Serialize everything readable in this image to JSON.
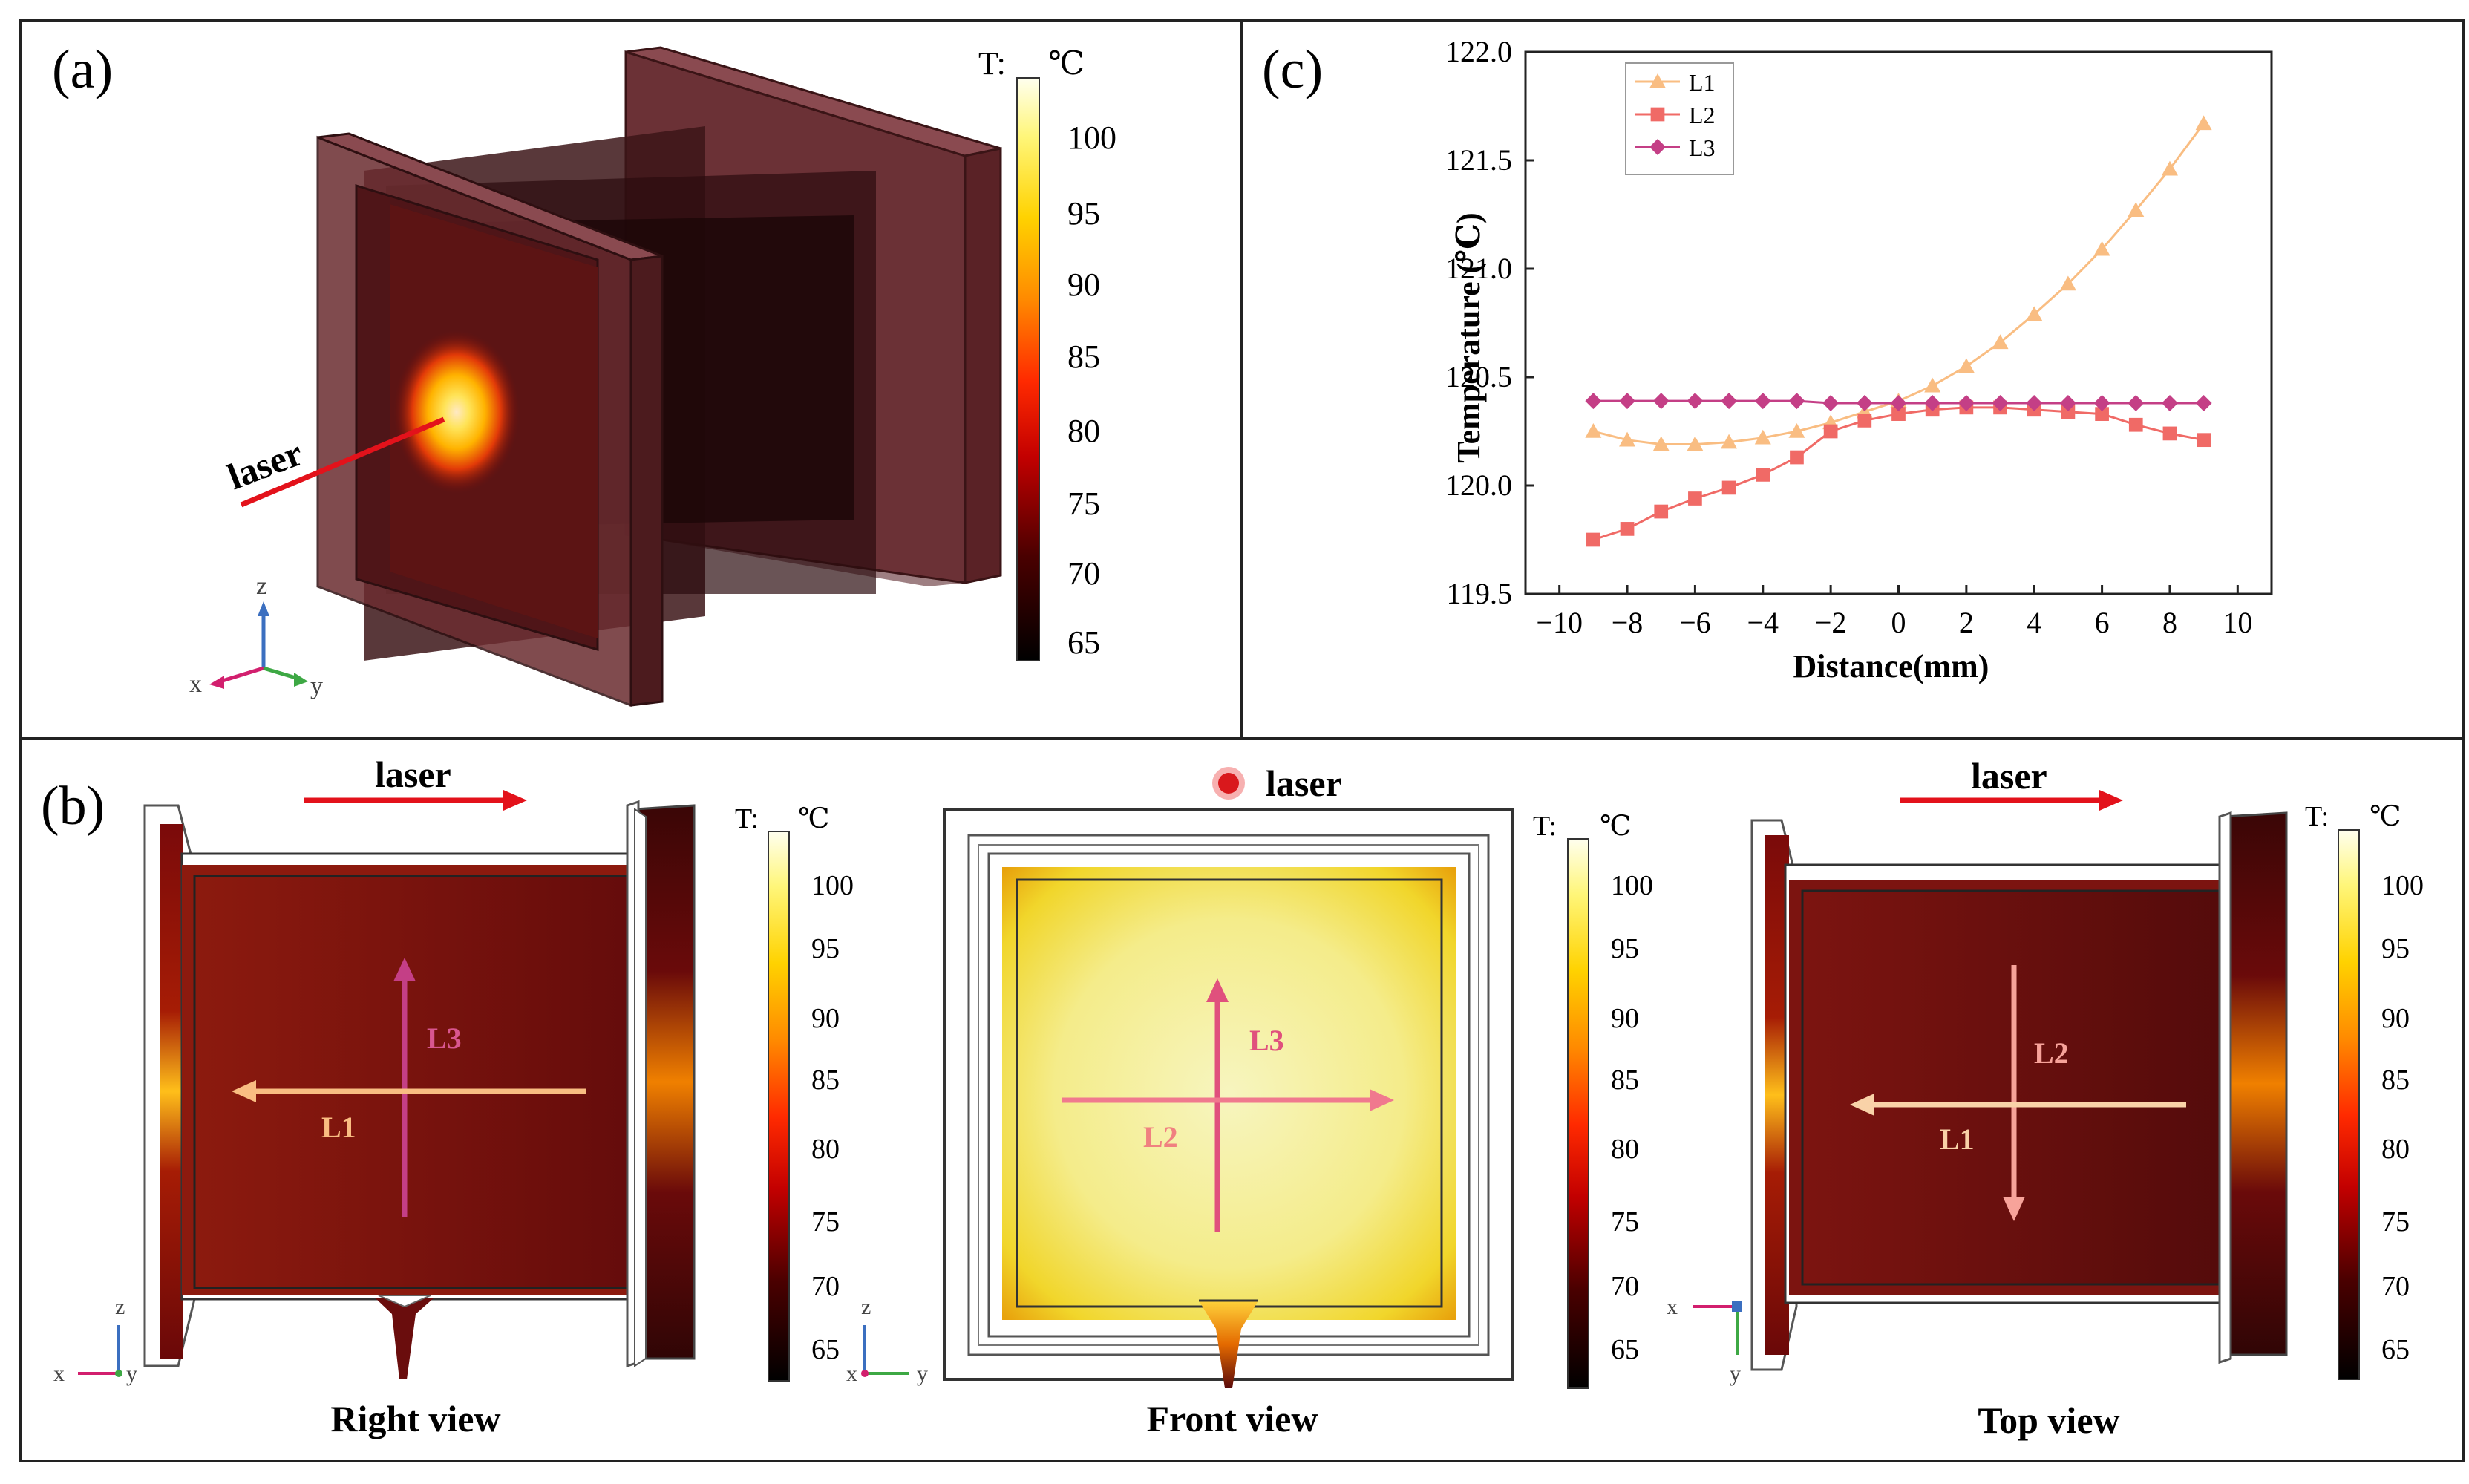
{
  "panels": {
    "a": {
      "label": "(a)",
      "laser_label": "laser",
      "colorbar": {
        "title": "T:",
        "unit": "℃",
        "ticks": [
          "100",
          "95",
          "90",
          "85",
          "80",
          "75",
          "70",
          "65"
        ]
      },
      "axes": {
        "z": "z",
        "x": "x",
        "y": "y"
      }
    },
    "b": {
      "label": "(b)",
      "views": [
        {
          "caption": "Right view",
          "laser_label": "laser",
          "line_h": "L1",
          "line_v": "L3",
          "axes": {
            "a": "z",
            "b": "x",
            "c": "y"
          },
          "colorbar": {
            "title": "T:",
            "unit": "℃",
            "ticks": [
              "100",
              "95",
              "90",
              "85",
              "80",
              "75",
              "70",
              "65"
            ]
          }
        },
        {
          "caption": "Front view",
          "laser_label": "laser",
          "line_h": "L2",
          "line_v": "L3",
          "axes": {
            "a": "z",
            "b": "x",
            "c": "y"
          },
          "colorbar": {
            "title": "T:",
            "unit": "℃",
            "ticks": [
              "100",
              "95",
              "90",
              "85",
              "80",
              "75",
              "70",
              "65"
            ]
          }
        },
        {
          "caption": "Top view",
          "laser_label": "laser",
          "line_h": "L1",
          "line_v": "L2",
          "axes": {
            "a": "x",
            "b": "y"
          },
          "colorbar": {
            "title": "T:",
            "unit": "℃",
            "ticks": [
              "100",
              "95",
              "90",
              "85",
              "80",
              "75",
              "70",
              "65"
            ]
          }
        }
      ]
    },
    "c": {
      "label": "(c)"
    }
  },
  "colors": {
    "L1": "#f9bd82",
    "L2": "#f06a66",
    "L3": "#c43f86",
    "frame": "#222222"
  },
  "chart_data": {
    "type": "line",
    "xlabel": "Distance(mm)",
    "ylabel": "Temperature (℃)",
    "xlim": [
      -11,
      11
    ],
    "ylim": [
      119.5,
      122.0
    ],
    "xticks": [
      -10,
      -8,
      -6,
      -4,
      -2,
      0,
      2,
      4,
      6,
      8,
      10
    ],
    "yticks": [
      119.5,
      120.0,
      120.5,
      121.0,
      121.5,
      122.0
    ],
    "xtick_labels": [
      "−10",
      "−8",
      "−6",
      "−4",
      "−2",
      "0",
      "2",
      "4",
      "6",
      "8",
      "10"
    ],
    "ytick_labels": [
      "119.5",
      "120.0",
      "120.5",
      "121.0",
      "121.5",
      "122.0"
    ],
    "legend_position": "top-left",
    "series": [
      {
        "name": "L1",
        "marker": "triangle",
        "x": [
          -9,
          -8,
          -7,
          -6,
          -5,
          -4,
          -3,
          -2,
          -1,
          0,
          1,
          2,
          3,
          4,
          5,
          6,
          7,
          8,
          9
        ],
        "y": [
          120.25,
          120.21,
          120.19,
          120.19,
          120.2,
          120.22,
          120.25,
          120.29,
          120.34,
          120.39,
          120.46,
          120.55,
          120.66,
          120.79,
          120.93,
          121.09,
          121.27,
          121.46,
          121.67
        ]
      },
      {
        "name": "L2",
        "marker": "square",
        "x": [
          -9,
          -8,
          -7,
          -6,
          -5,
          -4,
          -3,
          -2,
          -1,
          0,
          1,
          2,
          3,
          4,
          5,
          6,
          7,
          8,
          9
        ],
        "y": [
          119.75,
          119.8,
          119.88,
          119.94,
          119.99,
          120.05,
          120.13,
          120.25,
          120.3,
          120.33,
          120.35,
          120.36,
          120.36,
          120.35,
          120.34,
          120.33,
          120.28,
          120.24,
          120.21
        ]
      },
      {
        "name": "L3",
        "marker": "diamond",
        "x": [
          -9,
          -8,
          -7,
          -6,
          -5,
          -4,
          -3,
          -2,
          -1,
          0,
          1,
          2,
          3,
          4,
          5,
          6,
          7,
          8,
          9
        ],
        "y": [
          120.39,
          120.39,
          120.39,
          120.39,
          120.39,
          120.39,
          120.39,
          120.38,
          120.38,
          120.38,
          120.38,
          120.38,
          120.38,
          120.38,
          120.38,
          120.38,
          120.38,
          120.38,
          120.38
        ]
      }
    ]
  }
}
